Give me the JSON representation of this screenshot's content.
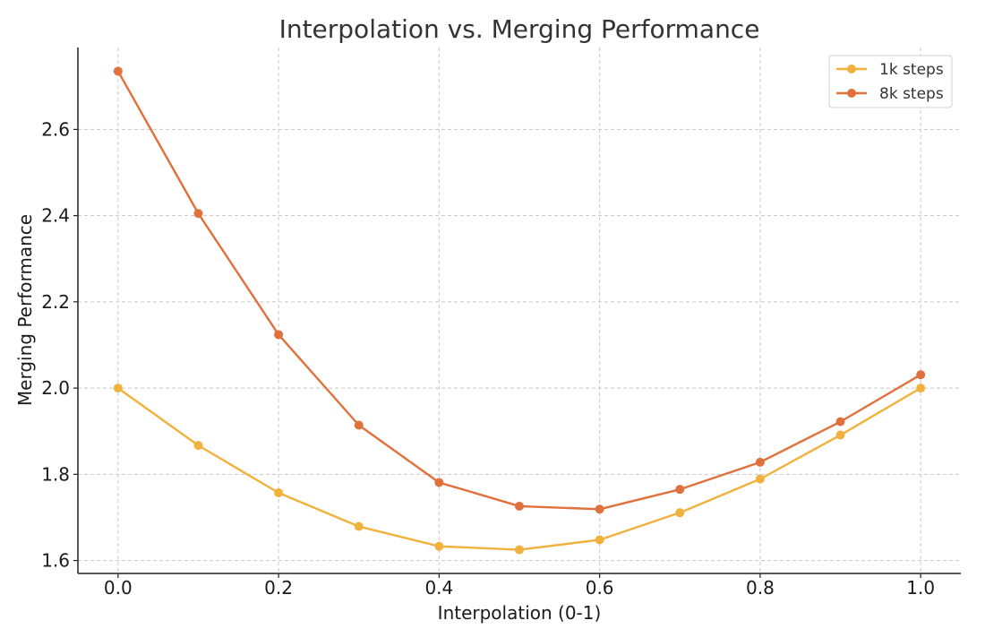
{
  "chart_data": {
    "type": "line",
    "title": "Interpolation vs. Merging Performance",
    "xlabel": "Interpolation (0-1)",
    "ylabel": "Merging Performance",
    "xlim": [
      -0.05,
      1.05
    ],
    "ylim": [
      1.57,
      2.79
    ],
    "xticks": [
      0.0,
      0.2,
      0.4,
      0.6,
      0.8,
      1.0
    ],
    "xtick_labels": [
      "0.0",
      "0.2",
      "0.4",
      "0.6",
      "0.8",
      "1.0"
    ],
    "yticks": [
      1.6,
      1.8,
      2.0,
      2.2,
      2.4,
      2.6
    ],
    "ytick_labels": [
      "1.6",
      "1.8",
      "2.0",
      "2.2",
      "2.4",
      "2.6"
    ],
    "grid": true,
    "legend_position": "top-right",
    "x": [
      0.0,
      0.1,
      0.2,
      0.3,
      0.4,
      0.5,
      0.6,
      0.7,
      0.8,
      0.9,
      1.0
    ],
    "series": [
      {
        "name": "1k steps",
        "color": "#f0b23c",
        "values": [
          2.0,
          1.867,
          1.757,
          1.679,
          1.633,
          1.625,
          1.648,
          1.711,
          1.789,
          1.891,
          2.0
        ]
      },
      {
        "name": "8k steps",
        "color": "#e0703c",
        "values": [
          2.735,
          2.405,
          2.124,
          1.914,
          1.781,
          1.726,
          1.719,
          1.765,
          1.828,
          1.922,
          2.031
        ]
      }
    ]
  }
}
